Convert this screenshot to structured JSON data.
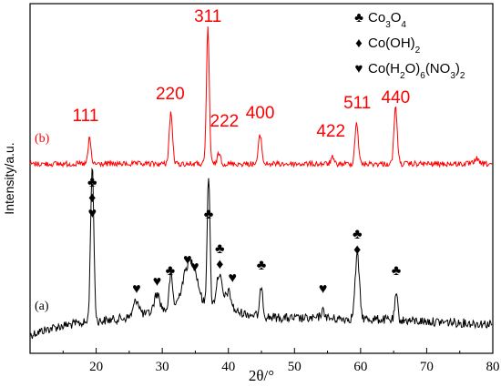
{
  "chart_data": {
    "type": "line",
    "xlabel": "2θ/°",
    "ylabel": "Intensity/a.u.",
    "xlim": [
      10,
      80
    ],
    "xticks": [
      20,
      30,
      40,
      50,
      60,
      70,
      80
    ],
    "colors": {
      "a": "#000000",
      "b": "#ff0000",
      "hkl": "#ff0000"
    },
    "series": [
      {
        "name": "(a)",
        "color": "#000000",
        "baseline": 368,
        "noise": 5,
        "peaks": [
          {
            "x": 19.4,
            "height": 170,
            "width": 0.35
          },
          {
            "x": 26.1,
            "height": 18,
            "width": 0.6
          },
          {
            "x": 29.2,
            "height": 20,
            "width": 0.6
          },
          {
            "x": 31.3,
            "height": 38,
            "width": 0.35
          },
          {
            "x": 33.8,
            "height": 38,
            "width": 1.2
          },
          {
            "x": 34.9,
            "height": 26,
            "width": 1.0
          },
          {
            "x": 37.0,
            "height": 145,
            "width": 0.3
          },
          {
            "x": 38.6,
            "height": 38,
            "width": 0.6
          },
          {
            "x": 40.0,
            "height": 20,
            "width": 0.6
          },
          {
            "x": 45.0,
            "height": 35,
            "width": 0.3
          },
          {
            "x": 54.3,
            "height": 8,
            "width": 0.5
          },
          {
            "x": 59.5,
            "height": 70,
            "width": 0.45
          },
          {
            "x": 65.4,
            "height": 28,
            "width": 0.3
          }
        ]
      },
      {
        "name": "(b)",
        "color": "#ff0000",
        "baseline": 180,
        "noise": 3,
        "peaks": [
          {
            "x": 19.0,
            "height": 28,
            "width": 0.3
          },
          {
            "x": 31.3,
            "height": 56,
            "width": 0.35
          },
          {
            "x": 36.9,
            "height": 150,
            "width": 0.3
          },
          {
            "x": 38.6,
            "height": 12,
            "width": 0.35
          },
          {
            "x": 44.8,
            "height": 32,
            "width": 0.35
          },
          {
            "x": 55.7,
            "height": 7,
            "width": 0.3
          },
          {
            "x": 59.4,
            "height": 46,
            "width": 0.35
          },
          {
            "x": 65.3,
            "height": 62,
            "width": 0.35
          },
          {
            "x": 77.5,
            "height": 6,
            "width": 0.4
          }
        ]
      }
    ],
    "hkl_labels": [
      {
        "text": "111",
        "x": 18.4
      },
      {
        "text": "220",
        "x": 31.2
      },
      {
        "text": "311",
        "x": 36.9
      },
      {
        "text": "222",
        "x": 39.4
      },
      {
        "text": "400",
        "x": 44.8
      },
      {
        "text": "422",
        "x": 55.5
      },
      {
        "text": "511",
        "x": 59.5
      },
      {
        "text": "440",
        "x": 65.3
      }
    ],
    "markers": [
      {
        "x": 19.4,
        "symbols": [
          "♣",
          "♦",
          "♥"
        ]
      },
      {
        "x": 26.1,
        "symbols": [
          "♥"
        ]
      },
      {
        "x": 29.2,
        "symbols": [
          "♥"
        ]
      },
      {
        "x": 31.2,
        "symbols": [
          "♣"
        ]
      },
      {
        "x": 33.8,
        "symbols": [
          "♥"
        ]
      },
      {
        "x": 34.9,
        "symbols": [
          "♥"
        ]
      },
      {
        "x": 37.0,
        "symbols": [
          "♣"
        ]
      },
      {
        "x": 38.7,
        "symbols": [
          "♣",
          "♦"
        ]
      },
      {
        "x": 40.6,
        "symbols": [
          "♥"
        ]
      },
      {
        "x": 45.0,
        "symbols": [
          "♣"
        ]
      },
      {
        "x": 54.3,
        "symbols": [
          "♥"
        ]
      },
      {
        "x": 59.5,
        "symbols": [
          "♣",
          "♦"
        ]
      },
      {
        "x": 65.4,
        "symbols": [
          "♣"
        ]
      }
    ],
    "legend": {
      "placement": "top-right",
      "entries": [
        {
          "symbol": "♣",
          "label": "Co",
          "parts": [
            [
              "Co",
              false
            ],
            [
              "3",
              true
            ],
            [
              "O",
              false
            ],
            [
              "4",
              true
            ]
          ]
        },
        {
          "symbol": "♦",
          "label": "Co(OH)",
          "parts": [
            [
              "Co(OH)",
              false
            ],
            [
              "2",
              true
            ]
          ]
        },
        {
          "symbol": "♥",
          "label": "Co(H",
          "parts": [
            [
              "Co(H",
              false
            ],
            [
              "2",
              true
            ],
            [
              "O)",
              false
            ],
            [
              "6",
              true
            ],
            [
              "(NO",
              false
            ],
            [
              "3",
              true
            ],
            [
              ")",
              false
            ],
            [
              "2",
              true
            ]
          ]
        }
      ]
    }
  }
}
